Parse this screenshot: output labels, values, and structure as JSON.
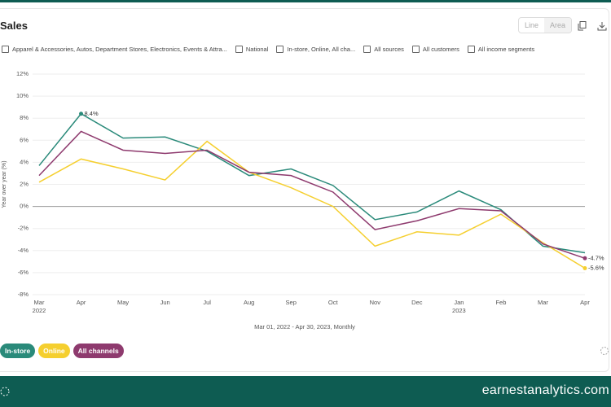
{
  "header": {
    "title": "Sales",
    "view_options": [
      "Line",
      "Area"
    ]
  },
  "filters": [
    "Apparel & Accessories, Autos, Department Stores, Electronics, Events & Attra...",
    "National",
    "In-store, Online, All cha...",
    "All sources",
    "All customers",
    "All income segments"
  ],
  "footer": {
    "brand": "earnestanalytics.com"
  },
  "chart_data": {
    "type": "line",
    "y_label": "Year over year (%)",
    "x_label": "Mar 01, 2022 - Apr 30, 2023, Monthly",
    "categories": [
      "Mar",
      "Apr",
      "May",
      "Jun",
      "Jul",
      "Aug",
      "Sep",
      "Oct",
      "Nov",
      "Dec",
      "Jan",
      "Feb",
      "Mar",
      "Apr"
    ],
    "category_years": [
      "2022",
      null,
      null,
      null,
      null,
      null,
      null,
      null,
      null,
      null,
      "2023",
      null,
      null,
      null
    ],
    "ylim": [
      -8,
      12
    ],
    "yticks": [
      {
        "value": -8,
        "label": "-8%"
      },
      {
        "value": -6,
        "label": "-6%"
      },
      {
        "value": -4,
        "label": "-4%"
      },
      {
        "value": -2,
        "label": "-2%"
      },
      {
        "value": 0,
        "label": "0%"
      },
      {
        "value": 2,
        "label": "2%"
      },
      {
        "value": 4,
        "label": "4%"
      },
      {
        "value": 6,
        "label": "6%"
      },
      {
        "value": 8,
        "label": "8%"
      },
      {
        "value": 10,
        "label": "10%"
      },
      {
        "value": 12,
        "label": "12%"
      }
    ],
    "grid": true,
    "series": [
      {
        "name": "In-store",
        "color": "#2a8a7a",
        "values": [
          3.7,
          8.4,
          6.2,
          6.3,
          5.0,
          2.8,
          3.4,
          1.9,
          -1.2,
          -0.5,
          1.4,
          -0.3,
          -3.6,
          -4.2
        ],
        "value_labels": [
          null,
          "8.4%",
          null,
          null,
          null,
          null,
          null,
          null,
          null,
          null,
          null,
          null,
          null,
          null
        ]
      },
      {
        "name": "Online",
        "color": "#f5cf2f",
        "values": [
          2.2,
          4.3,
          3.4,
          2.4,
          5.9,
          3.1,
          1.7,
          0.0,
          -3.6,
          -2.3,
          -2.6,
          -0.7,
          -3.3,
          -5.6
        ],
        "value_labels": [
          null,
          null,
          null,
          null,
          null,
          null,
          null,
          null,
          null,
          null,
          null,
          null,
          null,
          "-5.6%"
        ]
      },
      {
        "name": "All channels",
        "color": "#8e3a6e",
        "values": [
          2.8,
          6.8,
          5.1,
          4.8,
          5.1,
          3.1,
          2.8,
          1.3,
          -2.1,
          -1.3,
          -0.2,
          -0.4,
          -3.4,
          -4.7
        ],
        "value_labels": [
          null,
          null,
          null,
          null,
          null,
          null,
          null,
          null,
          null,
          null,
          null,
          null,
          null,
          "-4.7%"
        ]
      }
    ]
  }
}
